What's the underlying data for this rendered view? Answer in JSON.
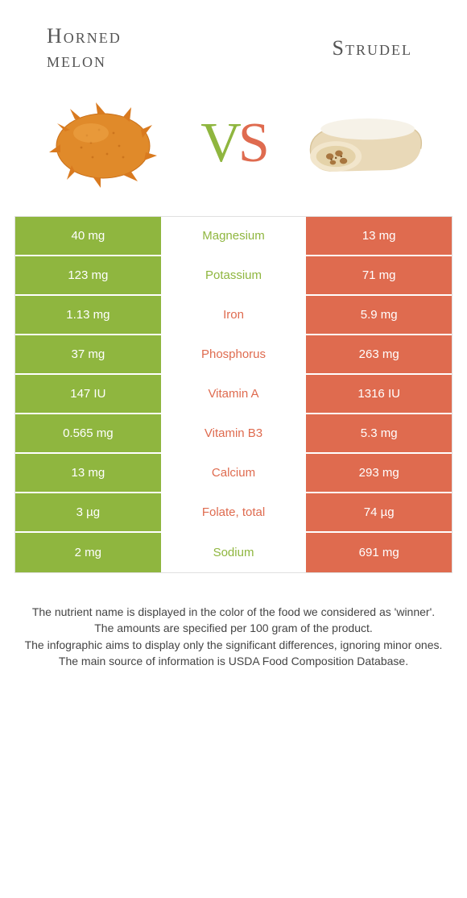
{
  "colors": {
    "left": "#8fb63f",
    "right": "#df6b4f",
    "rowGap": "#ffffff"
  },
  "foods": {
    "left": {
      "name": "Horned melon"
    },
    "right": {
      "name": "Strudel"
    }
  },
  "vs": {
    "v": "V",
    "s": "S"
  },
  "rows": [
    {
      "nutrient": "Magnesium",
      "left": "40 mg",
      "right": "13 mg",
      "winner": "left"
    },
    {
      "nutrient": "Potassium",
      "left": "123 mg",
      "right": "71 mg",
      "winner": "left"
    },
    {
      "nutrient": "Iron",
      "left": "1.13 mg",
      "right": "5.9 mg",
      "winner": "right"
    },
    {
      "nutrient": "Phosphorus",
      "left": "37 mg",
      "right": "263 mg",
      "winner": "right"
    },
    {
      "nutrient": "Vitamin A",
      "left": "147 IU",
      "right": "1316 IU",
      "winner": "right"
    },
    {
      "nutrient": "Vitamin B3",
      "left": "0.565 mg",
      "right": "5.3 mg",
      "winner": "right"
    },
    {
      "nutrient": "Calcium",
      "left": "13 mg",
      "right": "293 mg",
      "winner": "right"
    },
    {
      "nutrient": "Folate, total",
      "left": "3 µg",
      "right": "74 µg",
      "winner": "right"
    },
    {
      "nutrient": "Sodium",
      "left": "2 mg",
      "right": "691 mg",
      "winner": "left"
    }
  ],
  "footer": [
    "The nutrient name is displayed in the color of the food we considered as 'winner'.",
    "The amounts are specified per 100 gram of the product.",
    "The infographic aims to display only the significant differences, ignoring minor ones.",
    "The main source of information is USDA Food Composition Database."
  ]
}
